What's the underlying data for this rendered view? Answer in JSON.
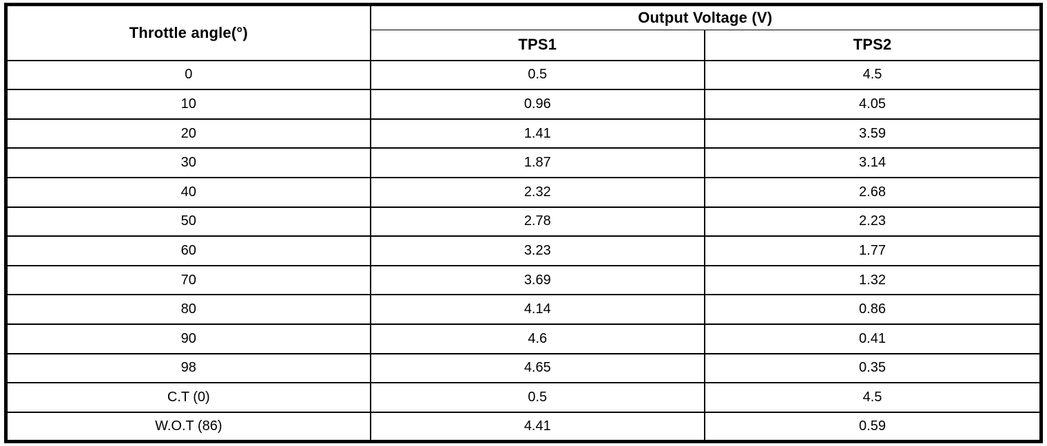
{
  "table": {
    "header": {
      "throttle_angle": "Throttle angle(°)",
      "output_voltage": "Output Voltage (V)",
      "tps1": "TPS1",
      "tps2": "TPS2"
    },
    "rows": [
      {
        "angle": "0",
        "tps1": "0.5",
        "tps2": "4.5"
      },
      {
        "angle": "10",
        "tps1": "0.96",
        "tps2": "4.05"
      },
      {
        "angle": "20",
        "tps1": "1.41",
        "tps2": "3.59"
      },
      {
        "angle": "30",
        "tps1": "1.87",
        "tps2": "3.14"
      },
      {
        "angle": "40",
        "tps1": "2.32",
        "tps2": "2.68"
      },
      {
        "angle": "50",
        "tps1": "2.78",
        "tps2": "2.23"
      },
      {
        "angle": "60",
        "tps1": "3.23",
        "tps2": "1.77"
      },
      {
        "angle": "70",
        "tps1": "3.69",
        "tps2": "1.32"
      },
      {
        "angle": "80",
        "tps1": "4.14",
        "tps2": "0.86"
      },
      {
        "angle": "90",
        "tps1": "4.6",
        "tps2": "0.41"
      },
      {
        "angle": "98",
        "tps1": "4.65",
        "tps2": "0.35"
      },
      {
        "angle": "C.T (0)",
        "tps1": "0.5",
        "tps2": "4.5"
      },
      {
        "angle": "W.O.T (86)",
        "tps1": "4.41",
        "tps2": "0.59"
      }
    ]
  },
  "colors": {
    "background": "#ffffff",
    "border": "#000000",
    "text": "#000000"
  },
  "chart_data": {
    "type": "table",
    "title": "Output Voltage (V) by Throttle angle(°)",
    "columns": [
      "Throttle angle(°)",
      "TPS1",
      "TPS2"
    ],
    "categories": [
      "0",
      "10",
      "20",
      "30",
      "40",
      "50",
      "60",
      "70",
      "80",
      "90",
      "98",
      "C.T (0)",
      "W.O.T (86)"
    ],
    "series": [
      {
        "name": "TPS1",
        "values": [
          0.5,
          0.96,
          1.41,
          1.87,
          2.32,
          2.78,
          3.23,
          3.69,
          4.14,
          4.6,
          4.65,
          0.5,
          4.41
        ]
      },
      {
        "name": "TPS2",
        "values": [
          4.5,
          4.05,
          3.59,
          3.14,
          2.68,
          2.23,
          1.77,
          1.32,
          0.86,
          0.41,
          0.35,
          4.5,
          0.59
        ]
      }
    ]
  }
}
